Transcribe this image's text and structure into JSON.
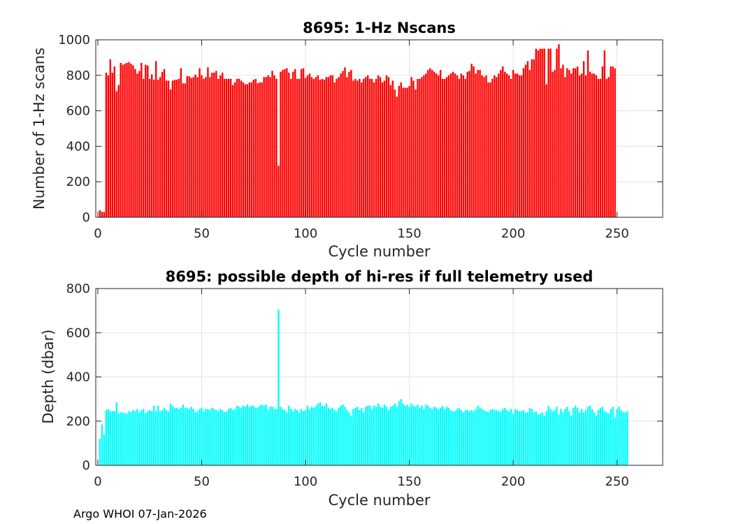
{
  "footer": "Argo WHOI 07-Jan-2026",
  "chart_data": [
    {
      "type": "bar",
      "title": "8695: 1-Hz Nscans",
      "xlabel": "Cycle number",
      "ylabel": "Number of 1-Hz scans",
      "xlim": [
        -1,
        272
      ],
      "ylim": [
        0,
        1000
      ],
      "xticks": [
        0,
        50,
        100,
        150,
        200,
        250
      ],
      "yticks": [
        0,
        200,
        400,
        600,
        800,
        1000
      ],
      "grid": true,
      "color": "#ff0000",
      "x_start": 1,
      "values": [
        40,
        30,
        30,
        815,
        800,
        890,
        815,
        850,
        710,
        745,
        870,
        860,
        865,
        870,
        875,
        865,
        855,
        835,
        810,
        825,
        870,
        780,
        860,
        855,
        780,
        805,
        775,
        880,
        775,
        790,
        820,
        835,
        770,
        770,
        720,
        770,
        775,
        775,
        780,
        840,
        755,
        755,
        795,
        795,
        785,
        790,
        805,
        790,
        840,
        800,
        780,
        790,
        845,
        790,
        815,
        815,
        825,
        780,
        800,
        815,
        780,
        780,
        780,
        780,
        745,
        760,
        780,
        780,
        770,
        760,
        750,
        750,
        760,
        760,
        775,
        780,
        755,
        760,
        760,
        790,
        790,
        800,
        790,
        825,
        800,
        780,
        290,
        820,
        830,
        835,
        840,
        815,
        780,
        820,
        835,
        780,
        780,
        835,
        840,
        785,
        800,
        810,
        790,
        780,
        790,
        800,
        775,
        780,
        775,
        790,
        790,
        800,
        800,
        760,
        780,
        790,
        810,
        825,
        845,
        790,
        820,
        830,
        770,
        780,
        770,
        780,
        760,
        780,
        790,
        800,
        780,
        780,
        760,
        780,
        800,
        790,
        760,
        770,
        800,
        790,
        745,
        770,
        720,
        680,
        740,
        760,
        730,
        730,
        730,
        740,
        790,
        770,
        720,
        780,
        780,
        790,
        800,
        810,
        830,
        840,
        830,
        820,
        810,
        800,
        830,
        780,
        780,
        790,
        800,
        810,
        820,
        810,
        800,
        780,
        810,
        800,
        780,
        820,
        825,
        865,
        850,
        810,
        830,
        830,
        800,
        790,
        800,
        760,
        760,
        780,
        800,
        790,
        810,
        830,
        850,
        820,
        810,
        800,
        780,
        830,
        810,
        810,
        800,
        800,
        840,
        860,
        880,
        830,
        890,
        890,
        950,
        940,
        950,
        950,
        950,
        750,
        950,
        950,
        820,
        830,
        950,
        975,
        840,
        860,
        790,
        840,
        830,
        810,
        840,
        840,
        850,
        800,
        810,
        880,
        800,
        940,
        820,
        810,
        810,
        800,
        780,
        780,
        850,
        940,
        780,
        790,
        850,
        850,
        840
      ]
    },
    {
      "type": "bar",
      "title": "8695: possible depth of hi-res if full telemetry used",
      "xlabel": "Cycle number",
      "ylabel": "Depth (dbar)",
      "xlim": [
        -1,
        272
      ],
      "ylim": [
        0,
        800
      ],
      "xticks": [
        0,
        50,
        100,
        150,
        200,
        250
      ],
      "yticks": [
        0,
        200,
        400,
        600,
        800
      ],
      "grid": true,
      "color": "#00ffff",
      "x_start": 1,
      "values": [
        120,
        185,
        140,
        250,
        255,
        245,
        245,
        245,
        285,
        235,
        240,
        240,
        235,
        235,
        245,
        240,
        250,
        245,
        255,
        240,
        250,
        255,
        235,
        245,
        250,
        245,
        270,
        245,
        270,
        245,
        250,
        260,
        250,
        245,
        280,
        270,
        260,
        260,
        255,
        260,
        275,
        260,
        260,
        255,
        265,
        255,
        240,
        245,
        255,
        260,
        245,
        255,
        255,
        250,
        260,
        255,
        250,
        245,
        255,
        250,
        240,
        245,
        255,
        260,
        250,
        255,
        270,
        265,
        260,
        270,
        265,
        275,
        265,
        270,
        270,
        260,
        260,
        270,
        275,
        270,
        275,
        250,
        265,
        265,
        255,
        255,
        705,
        265,
        255,
        250,
        240,
        270,
        255,
        245,
        255,
        250,
        240,
        255,
        245,
        250,
        270,
        255,
        265,
        260,
        270,
        280,
        285,
        270,
        265,
        280,
        260,
        255,
        260,
        250,
        245,
        260,
        270,
        275,
        265,
        250,
        240,
        225,
        255,
        260,
        265,
        250,
        260,
        240,
        265,
        270,
        270,
        255,
        270,
        265,
        280,
        265,
        260,
        275,
        265,
        250,
        265,
        270,
        280,
        265,
        290,
        300,
        280,
        270,
        275,
        265,
        280,
        270,
        265,
        275,
        260,
        270,
        255,
        275,
        270,
        260,
        255,
        265,
        260,
        255,
        260,
        270,
        255,
        265,
        260,
        250,
        245,
        245,
        255,
        260,
        250,
        240,
        250,
        250,
        245,
        250,
        245,
        255,
        270,
        260,
        255,
        250,
        245,
        240,
        250,
        255,
        250,
        250,
        245,
        245,
        255,
        260,
        250,
        245,
        255,
        235,
        255,
        250,
        245,
        245,
        250,
        240,
        240,
        260,
        255,
        240,
        245,
        230,
        235,
        240,
        225,
        245,
        270,
        255,
        245,
        250,
        265,
        230,
        255,
        240,
        255,
        265,
        245,
        225,
        260,
        270,
        260,
        240,
        255,
        240,
        250,
        265,
        270,
        255,
        240,
        225,
        250,
        260,
        265,
        245,
        240,
        235,
        255,
        265,
        215,
        255,
        265,
        250,
        240,
        240,
        245
      ]
    }
  ]
}
